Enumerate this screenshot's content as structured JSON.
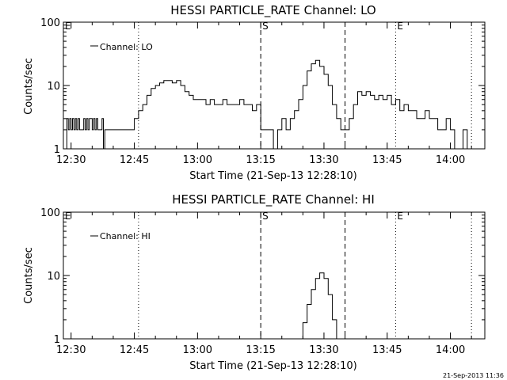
{
  "chart_data": [
    {
      "type": "line",
      "title": "HESSI PARTICLE_RATE Channel: LO",
      "xlabel": "Start Time (21-Sep-13 12:28:10)",
      "ylabel": "Counts/sec",
      "y_scale": "log",
      "ylim": [
        1,
        100
      ],
      "xlim": [
        "12:28:10",
        "14:08:10"
      ],
      "x_ticks": [
        "12:30",
        "12:45",
        "13:00",
        "13:15",
        "13:30",
        "13:45",
        "14:00"
      ],
      "y_ticks": [
        "1",
        "10",
        "100"
      ],
      "legend": "top-left",
      "series": [
        {
          "name": "Channel: LO",
          "x": [
            "12:28:10",
            "12:29:00",
            "12:29:20",
            "12:29:40",
            "12:30:00",
            "12:30:20",
            "12:30:40",
            "12:31:00",
            "12:31:20",
            "12:31:40",
            "12:32:00",
            "12:33:00",
            "12:33:20",
            "12:33:40",
            "12:34:00",
            "12:34:20",
            "12:35:00",
            "12:35:20",
            "12:35:40",
            "12:36:00",
            "12:36:20",
            "12:37:00",
            "12:37:20",
            "12:37:40",
            "12:38:00",
            "12:39:00",
            "12:40:00",
            "12:41:00",
            "12:42:00",
            "12:43:00",
            "12:44:00",
            "12:45:00",
            "12:46:00",
            "12:47:00",
            "12:48:00",
            "12:49:00",
            "12:50:00",
            "12:51:00",
            "12:52:00",
            "12:53:00",
            "12:54:00",
            "12:55:00",
            "12:56:00",
            "12:57:00",
            "12:58:00",
            "12:59:00",
            "13:00:00",
            "13:01:00",
            "13:02:00",
            "13:03:00",
            "13:04:00",
            "13:05:00",
            "13:06:00",
            "13:07:00",
            "13:08:00",
            "13:09:00",
            "13:10:00",
            "13:11:00",
            "13:12:00",
            "13:13:00",
            "13:14:00",
            "13:15:00",
            "13:16:00",
            "13:17:00",
            "13:18:00",
            "13:19:00",
            "13:20:00",
            "13:21:00",
            "13:22:00",
            "13:23:00",
            "13:24:00",
            "13:25:00",
            "13:26:00",
            "13:27:00",
            "13:28:00",
            "13:29:00",
            "13:30:00",
            "13:31:00",
            "13:32:00",
            "13:33:00",
            "13:34:00",
            "13:35:00",
            "13:36:00",
            "13:37:00",
            "13:38:00",
            "13:39:00",
            "13:40:00",
            "13:41:00",
            "13:42:00",
            "13:43:00",
            "13:44:00",
            "13:45:00",
            "13:46:00",
            "13:47:00",
            "13:48:00",
            "13:49:00",
            "13:50:00",
            "13:51:00",
            "13:52:00",
            "13:53:00",
            "13:54:00",
            "13:55:00",
            "13:56:00",
            "13:57:00",
            "13:58:00",
            "13:59:00",
            "14:00:00",
            "14:01:00",
            "14:02:00",
            "14:03:00",
            "14:04:00"
          ],
          "y": [
            1,
            3,
            2,
            3,
            2,
            3,
            2,
            3,
            2,
            3,
            2,
            3,
            2,
            3,
            2,
            3,
            2,
            3,
            2,
            3,
            2,
            2,
            3,
            1,
            2,
            2,
            2,
            2,
            2,
            2,
            2,
            3,
            4,
            5,
            7,
            9,
            10,
            11,
            12,
            12,
            11,
            12,
            10,
            8,
            7,
            6,
            6,
            6,
            5,
            6,
            5,
            5,
            6,
            5,
            5,
            5,
            6,
            5,
            5,
            4,
            5,
            2,
            2,
            2,
            1,
            2,
            3,
            2,
            3,
            4,
            6,
            10,
            17,
            22,
            25,
            20,
            15,
            10,
            5,
            3,
            2,
            2,
            3,
            5,
            8,
            7,
            8,
            7,
            6,
            7,
            6,
            7,
            5,
            6,
            4,
            5,
            4,
            4,
            3,
            3,
            4,
            3,
            3,
            2,
            2,
            3,
            2,
            1,
            1,
            2,
            1
          ]
        }
      ],
      "annotations": [
        "E",
        "S",
        "E"
      ]
    },
    {
      "type": "line",
      "title": "HESSI PARTICLE_RATE Channel: HI",
      "xlabel": "Start Time (21-Sep-13 12:28:10)",
      "ylabel": "Counts/sec",
      "y_scale": "log",
      "ylim": [
        1,
        100
      ],
      "xlim": [
        "12:28:10",
        "14:08:10"
      ],
      "x_ticks": [
        "12:30",
        "12:45",
        "13:00",
        "13:15",
        "13:30",
        "13:45",
        "14:00"
      ],
      "y_ticks": [
        "1",
        "10",
        "100"
      ],
      "legend": "top-left",
      "series": [
        {
          "name": "Channel: HI",
          "x": [
            "13:24:00",
            "13:25:00",
            "13:26:00",
            "13:27:00",
            "13:28:00",
            "13:29:00",
            "13:30:00",
            "13:31:00",
            "13:32:00",
            "13:33:00"
          ],
          "y": [
            1,
            1.8,
            3.5,
            6,
            9,
            11,
            9,
            5,
            2,
            1
          ]
        }
      ],
      "annotations": [
        "E",
        "S",
        "E"
      ]
    }
  ],
  "footer": {
    "timestamp": "21-Sep-2013 11:36"
  }
}
